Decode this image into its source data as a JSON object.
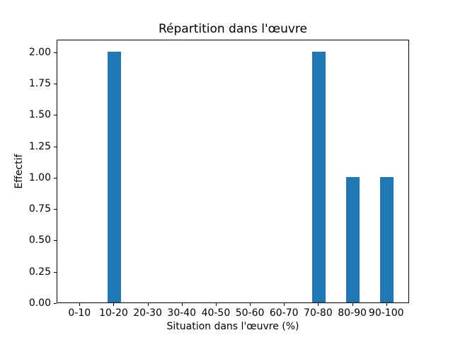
{
  "chart_data": {
    "type": "bar",
    "title": "Répartition dans l'œuvre",
    "xlabel": "Situation dans l'œuvre (%)",
    "ylabel": "Effectif",
    "categories": [
      "0-10",
      "10-20",
      "20-30",
      "30-40",
      "40-50",
      "50-60",
      "60-70",
      "70-80",
      "80-90",
      "90-100"
    ],
    "values": [
      0,
      2,
      0,
      0,
      0,
      0,
      0,
      2,
      1,
      1
    ],
    "ytick_values": [
      0.0,
      0.25,
      0.5,
      0.75,
      1.0,
      1.25,
      1.5,
      1.75,
      2.0
    ],
    "ytick_labels": [
      "0.00",
      "0.25",
      "0.50",
      "0.75",
      "1.00",
      "1.25",
      "1.50",
      "1.75",
      "2.00"
    ],
    "ylim": [
      0,
      2.1
    ],
    "xlim": [
      -0.67,
      9.67
    ],
    "bar_width": 0.4,
    "bar_color": "#1f77b4",
    "background_color": "#ffffff",
    "axis_color": "#000000",
    "grid": false,
    "legend_position": "none"
  }
}
